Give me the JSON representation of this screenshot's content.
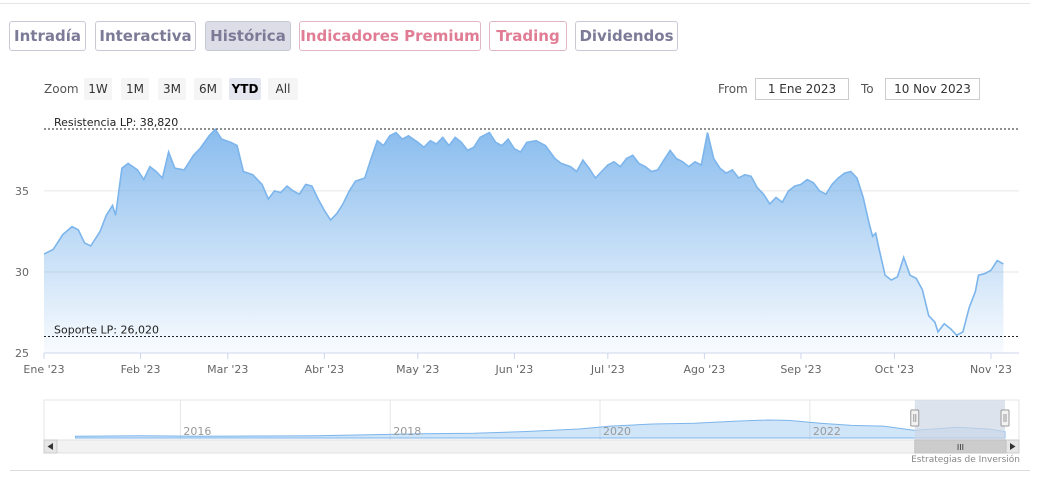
{
  "tabs": [
    {
      "label": "Intradía",
      "style": "normal"
    },
    {
      "label": "Interactiva",
      "style": "normal"
    },
    {
      "label": "Histórica",
      "style": "active"
    },
    {
      "label": "Indicadores Premium",
      "style": "pink"
    },
    {
      "label": "Trading",
      "style": "pink"
    },
    {
      "label": "Dividendos",
      "style": "normal"
    }
  ],
  "zoom": {
    "label": "Zoom",
    "buttons": [
      "1W",
      "1M",
      "3M",
      "6M",
      "YTD",
      "All"
    ],
    "active": "YTD"
  },
  "range": {
    "from_label": "From",
    "from_value": "1 Ene 2023",
    "to_label": "To",
    "to_value": "10 Nov 2023"
  },
  "colors": {
    "series_line": "#7cb5ec",
    "area_top": "#7cb5ec",
    "tab_text": "#7b7b98",
    "tab_pink": "#e07d95",
    "navigator_mask": "#cfd7e6"
  },
  "chart_data": {
    "type": "area",
    "x_unit": "days since 1 Ene 2023",
    "ylim": [
      25,
      39.5
    ],
    "yticks": [
      25,
      30,
      35
    ],
    "xticks": [
      "Ene '23",
      "Feb '23",
      "Mar '23",
      "Abr '23",
      "May '23",
      "Jun '23",
      "Jul '23",
      "Ago '23",
      "Sep '23",
      "Oct '23",
      "Nov '23"
    ],
    "series": [
      {
        "points": [
          [
            0,
            31.1
          ],
          [
            3,
            31.4
          ],
          [
            6,
            32.3
          ],
          [
            9,
            32.8
          ],
          [
            11,
            32.6
          ],
          [
            13,
            31.8
          ],
          [
            15,
            31.6
          ],
          [
            18,
            32.5
          ],
          [
            20,
            33.5
          ],
          [
            22,
            34.1
          ],
          [
            23,
            33.5
          ],
          [
            25,
            36.4
          ],
          [
            27,
            36.7
          ],
          [
            30,
            36.3
          ],
          [
            32,
            35.7
          ],
          [
            34,
            36.5
          ],
          [
            36,
            36.2
          ],
          [
            38,
            35.8
          ],
          [
            40,
            37.4
          ],
          [
            42,
            36.4
          ],
          [
            45,
            36.3
          ],
          [
            48,
            37.2
          ],
          [
            50,
            37.6
          ],
          [
            53,
            38.4
          ],
          [
            55,
            38.8
          ],
          [
            57,
            38.2
          ],
          [
            60,
            38.0
          ],
          [
            62,
            37.8
          ],
          [
            64,
            36.2
          ],
          [
            67,
            36.0
          ],
          [
            70,
            35.4
          ],
          [
            72,
            34.5
          ],
          [
            74,
            35.0
          ],
          [
            76,
            34.9
          ],
          [
            78,
            35.3
          ],
          [
            80,
            35.0
          ],
          [
            82,
            34.8
          ],
          [
            84,
            35.4
          ],
          [
            86,
            35.3
          ],
          [
            88,
            34.5
          ],
          [
            90,
            33.8
          ],
          [
            92,
            33.2
          ],
          [
            94,
            33.6
          ],
          [
            96,
            34.2
          ],
          [
            98,
            35.0
          ],
          [
            100,
            35.6
          ],
          [
            103,
            35.8
          ],
          [
            105,
            37.0
          ],
          [
            107,
            38.1
          ],
          [
            109,
            37.8
          ],
          [
            111,
            38.4
          ],
          [
            113,
            38.6
          ],
          [
            115,
            38.2
          ],
          [
            117,
            38.4
          ],
          [
            120,
            38.0
          ],
          [
            122,
            37.7
          ],
          [
            124,
            38.1
          ],
          [
            126,
            37.9
          ],
          [
            128,
            38.3
          ],
          [
            130,
            37.8
          ],
          [
            132,
            38.3
          ],
          [
            134,
            38.0
          ],
          [
            136,
            37.5
          ],
          [
            138,
            37.7
          ],
          [
            140,
            38.3
          ],
          [
            143,
            38.6
          ],
          [
            145,
            38.0
          ],
          [
            147,
            37.8
          ],
          [
            149,
            38.2
          ],
          [
            151,
            37.6
          ],
          [
            153,
            37.4
          ],
          [
            155,
            38.0
          ],
          [
            158,
            38.1
          ],
          [
            161,
            37.8
          ],
          [
            164,
            37.0
          ],
          [
            166,
            36.7
          ],
          [
            169,
            36.5
          ],
          [
            171,
            36.2
          ],
          [
            173,
            36.9
          ],
          [
            175,
            36.4
          ],
          [
            177,
            35.8
          ],
          [
            179,
            36.2
          ],
          [
            181,
            36.6
          ],
          [
            183,
            36.8
          ],
          [
            185,
            36.5
          ],
          [
            187,
            37.0
          ],
          [
            189,
            37.2
          ],
          [
            191,
            36.7
          ],
          [
            193,
            36.5
          ],
          [
            195,
            36.2
          ],
          [
            197,
            36.3
          ],
          [
            199,
            36.9
          ],
          [
            201,
            37.5
          ],
          [
            203,
            37.0
          ],
          [
            205,
            36.8
          ],
          [
            207,
            36.5
          ],
          [
            209,
            36.8
          ],
          [
            211,
            36.6
          ],
          [
            213,
            38.6
          ],
          [
            215,
            37.0
          ],
          [
            217,
            36.4
          ],
          [
            219,
            36.1
          ],
          [
            221,
            36.3
          ],
          [
            223,
            35.8
          ],
          [
            225,
            36.0
          ],
          [
            227,
            35.9
          ],
          [
            229,
            35.2
          ],
          [
            231,
            34.8
          ],
          [
            233,
            34.2
          ],
          [
            235,
            34.6
          ],
          [
            237,
            34.3
          ],
          [
            239,
            35.0
          ],
          [
            241,
            35.3
          ],
          [
            243,
            35.4
          ],
          [
            245,
            35.7
          ],
          [
            247,
            35.5
          ],
          [
            249,
            35.0
          ],
          [
            251,
            34.8
          ],
          [
            253,
            35.4
          ],
          [
            255,
            35.8
          ],
          [
            257,
            36.1
          ],
          [
            259,
            36.2
          ],
          [
            261,
            35.8
          ],
          [
            263,
            34.6
          ],
          [
            265,
            32.9
          ],
          [
            266,
            32.2
          ],
          [
            267,
            32.4
          ],
          [
            268,
            31.5
          ],
          [
            270,
            29.8
          ],
          [
            272,
            29.5
          ],
          [
            274,
            29.7
          ],
          [
            276,
            30.9
          ],
          [
            278,
            29.8
          ],
          [
            280,
            29.6
          ],
          [
            282,
            28.9
          ],
          [
            284,
            27.3
          ],
          [
            286,
            26.9
          ],
          [
            287,
            26.3
          ],
          [
            289,
            26.8
          ],
          [
            291,
            26.5
          ],
          [
            293,
            26.1
          ],
          [
            295,
            26.3
          ],
          [
            297,
            27.8
          ],
          [
            299,
            28.8
          ],
          [
            300,
            29.8
          ],
          [
            302,
            29.9
          ],
          [
            304,
            30.1
          ],
          [
            306,
            30.7
          ],
          [
            308,
            30.5
          ]
        ],
        "fill_opacity_top": 0.9,
        "fill_opacity_bottom": 0.05
      }
    ],
    "bands": [
      {
        "label": "Resistencia LP: 38,820",
        "value": 38.82
      },
      {
        "label": "Soporte LP: 26,020",
        "value": 26.02
      }
    ]
  },
  "navigator": {
    "xticks": [
      "2016",
      "2018",
      "2020",
      "2022"
    ],
    "x_unit": "year",
    "series": [
      [
        2015.0,
        0.1
      ],
      [
        2015.6,
        0.12
      ],
      [
        2016.2,
        0.1
      ],
      [
        2016.8,
        0.11
      ],
      [
        2017.3,
        0.12
      ],
      [
        2017.8,
        0.18
      ],
      [
        2018.3,
        0.24
      ],
      [
        2018.8,
        0.26
      ],
      [
        2019.3,
        0.36
      ],
      [
        2019.8,
        0.5
      ],
      [
        2020.1,
        0.66
      ],
      [
        2020.5,
        0.78
      ],
      [
        2020.9,
        0.82
      ],
      [
        2021.3,
        0.94
      ],
      [
        2021.6,
        1.0
      ],
      [
        2021.8,
        0.98
      ],
      [
        2022.1,
        0.82
      ],
      [
        2022.4,
        0.7
      ],
      [
        2022.7,
        0.66
      ],
      [
        2023.0,
        0.42
      ],
      [
        2023.4,
        0.6
      ],
      [
        2023.7,
        0.5
      ],
      [
        2023.86,
        0.36
      ]
    ],
    "selection": [
      2023.0,
      2023.86
    ],
    "scroll_thumb": "III"
  },
  "credits": "Estrategias de Inversión"
}
